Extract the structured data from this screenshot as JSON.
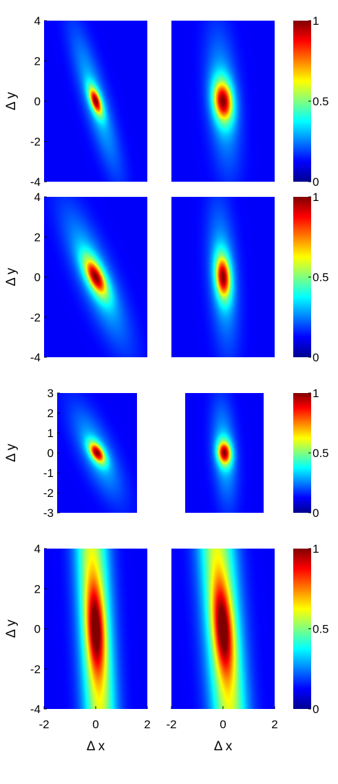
{
  "chart_data": {
    "type": "heatmap",
    "colormap": "jet",
    "xlabel": "Δ x",
    "ylabel": "Δ y",
    "colorbar": {
      "ticks": [
        0,
        0.5,
        1
      ],
      "labels": [
        "0",
        "0.5",
        "1"
      ],
      "range": [
        0,
        1
      ]
    },
    "rows": [
      {
        "ylim": [
          -4,
          4
        ],
        "yticks": [
          -4,
          -2,
          0,
          2,
          4
        ],
        "ytick_labels": [
          "-4",
          "-2",
          "0",
          "2",
          "4"
        ],
        "xlim": [
          -2,
          2
        ],
        "x_axis_shown": false,
        "panels": [
          {
            "peak_value": 1,
            "peak": [
              0,
              0
            ],
            "spread_x": 0.16,
            "spread_y": 0.55,
            "tilt": -0.22,
            "halo_x": 0.35,
            "halo_y": 2.5,
            "halo_amp": 0.22
          },
          {
            "peak_value": 1,
            "peak": [
              0,
              0
            ],
            "spread_x": 0.28,
            "spread_y": 0.8,
            "tilt": -0.06,
            "halo_x": 0.42,
            "halo_y": 2.4,
            "halo_amp": 0.22
          }
        ]
      },
      {
        "ylim": [
          -4,
          4
        ],
        "yticks": [
          -4,
          -2,
          0,
          2,
          4
        ],
        "ytick_labels": [
          "-4",
          "-2",
          "0",
          "2",
          "4"
        ],
        "xlim": [
          -2,
          2
        ],
        "x_axis_shown": false,
        "panels": [
          {
            "peak_value": 1,
            "peak": [
              0,
              0
            ],
            "spread_x": 0.26,
            "spread_y": 0.75,
            "tilt": -0.3,
            "halo_x": 0.5,
            "halo_y": 2.3,
            "halo_amp": 0.25
          },
          {
            "peak_value": 1,
            "peak": [
              0,
              0
            ],
            "spread_x": 0.22,
            "spread_y": 0.85,
            "tilt": -0.05,
            "halo_x": 0.38,
            "halo_y": 2.5,
            "halo_amp": 0.22
          }
        ]
      },
      {
        "ylim": [
          -3,
          3
        ],
        "yticks": [
          -3,
          -2,
          -1,
          0,
          1,
          2,
          3
        ],
        "ytick_labels": [
          "-3",
          "-2",
          "-1",
          "0",
          "1",
          "2",
          "3"
        ],
        "xlim": [
          -1.5,
          1.5
        ],
        "x_axis_shown": false,
        "panels": [
          {
            "peak_value": 1,
            "peak": [
              0,
              0
            ],
            "spread_x": 0.2,
            "spread_y": 0.42,
            "tilt": -0.3,
            "halo_x": 0.45,
            "halo_y": 1.6,
            "halo_amp": 0.22
          },
          {
            "peak_value": 1,
            "peak": [
              0,
              0
            ],
            "spread_x": 0.2,
            "spread_y": 0.48,
            "tilt": -0.05,
            "halo_x": 0.32,
            "halo_y": 1.8,
            "halo_amp": 0.22
          }
        ]
      },
      {
        "ylim": [
          -4,
          4
        ],
        "yticks": [
          -4,
          -2,
          0,
          2,
          4
        ],
        "ytick_labels": [
          "-4",
          "-2",
          "0",
          "2",
          "4"
        ],
        "xlim": [
          -2,
          2
        ],
        "x_axis_shown": true,
        "xticks": [
          -2,
          0,
          2
        ],
        "xtick_labels": [
          "-2",
          "0",
          "2"
        ],
        "panels": [
          {
            "peak_value": 1,
            "peak": [
              0,
              0
            ],
            "spread_x": 0.24,
            "spread_y": 1.6,
            "tilt": -0.04,
            "halo_x": 0.45,
            "halo_y": 12,
            "halo_amp": 0.55
          },
          {
            "peak_value": 1,
            "peak": [
              0,
              0
            ],
            "spread_x": 0.26,
            "spread_y": 1.6,
            "tilt": -0.06,
            "halo_x": 0.5,
            "halo_y": 12,
            "halo_amp": 0.55
          }
        ]
      }
    ]
  }
}
